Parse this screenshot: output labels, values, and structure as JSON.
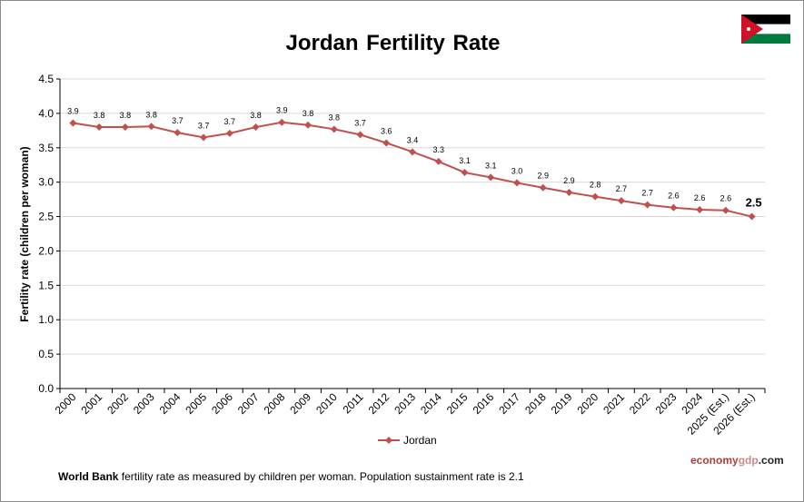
{
  "chart_data": {
    "type": "line",
    "title": "Jordan Fertility Rate",
    "ylabel": "Fertility rate (children per woman)",
    "xlabel": "",
    "ylim": [
      0,
      4.5
    ],
    "yticks": [
      "0.0",
      "0.5",
      "1.0",
      "1.5",
      "2.0",
      "2.5",
      "3.0",
      "3.5",
      "4.0",
      "4.5"
    ],
    "grid": true,
    "legend_position": "bottom",
    "categories": [
      "2000",
      "2001",
      "2002",
      "2003",
      "2004",
      "2005",
      "2006",
      "2007",
      "2008",
      "2009",
      "2010",
      "2011",
      "2012",
      "2013",
      "2014",
      "2015",
      "2016",
      "2017",
      "2018",
      "2019",
      "2020",
      "2021",
      "2022",
      "2023",
      "2024",
      "2025 (Est.)",
      "2026 (Est.)"
    ],
    "series": [
      {
        "name": "Jordan",
        "color": "#c0504d",
        "values": [
          3.86,
          3.8,
          3.8,
          3.81,
          3.72,
          3.65,
          3.71,
          3.8,
          3.87,
          3.83,
          3.77,
          3.69,
          3.57,
          3.44,
          3.3,
          3.14,
          3.07,
          2.99,
          2.92,
          2.85,
          2.79,
          2.73,
          2.67,
          2.63,
          2.6,
          2.59,
          2.5
        ],
        "labels": [
          "3.9",
          "3.8",
          "3.8",
          "3.8",
          "3.7",
          "3.7",
          "3.7",
          "3.8",
          "3.9",
          "3.8",
          "3.8",
          "3.7",
          "3.6",
          "3.4",
          "3.3",
          "3.1",
          "3.1",
          "3.0",
          "2.9",
          "2.9",
          "2.8",
          "2.7",
          "2.7",
          "2.6",
          "2.6",
          "2.6",
          "2.5"
        ]
      }
    ]
  },
  "footnote": {
    "bold_part": "World Bank",
    "rest": " fertility rate as measured  by children per woman.  Population sustainment rate is 2.1"
  },
  "brand": {
    "part1": "economy",
    "part2": "gdp",
    "part3": ".com"
  },
  "flag": {
    "name": "jordan-flag-icon",
    "colors": {
      "black": "#000000",
      "white": "#ffffff",
      "green": "#007a3d",
      "red": "#ce1126"
    }
  }
}
